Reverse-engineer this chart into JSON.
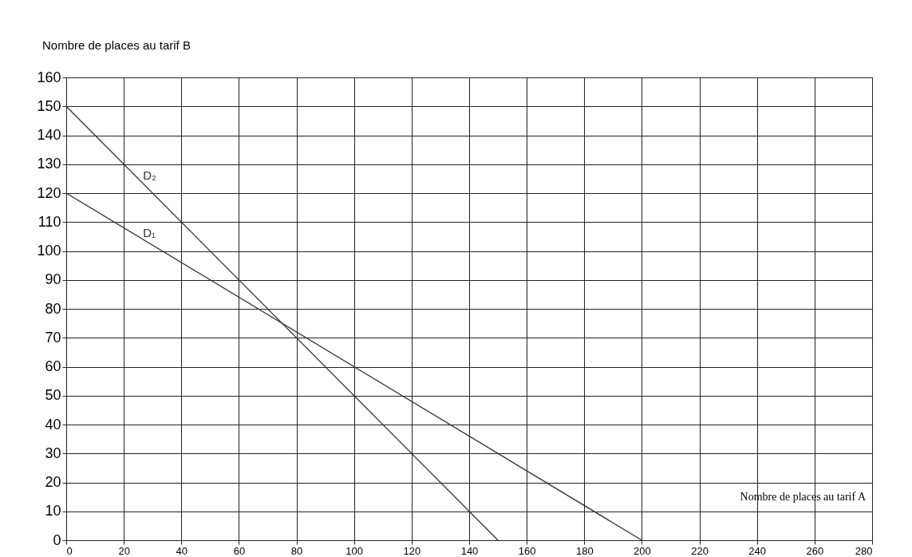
{
  "chart_data": {
    "type": "line",
    "xlabel": "Nombre de places au tarif A",
    "ylabel": "Nombre de places au tarif B",
    "series": [
      {
        "name": "D₂",
        "color": "#333333",
        "x": [
          0,
          150
        ],
        "values": [
          150,
          0
        ]
      },
      {
        "name": "D₁",
        "color": "#333333",
        "x": [
          0,
          200
        ],
        "values": [
          120,
          0
        ]
      }
    ],
    "xlim": [
      0,
      280
    ],
    "xticks": [
      0,
      20,
      40,
      60,
      80,
      100,
      120,
      140,
      160,
      180,
      200,
      220,
      240,
      260,
      280
    ],
    "ylim": [
      0,
      160
    ],
    "yticks": [
      0,
      10,
      20,
      30,
      40,
      50,
      60,
      70,
      80,
      90,
      100,
      110,
      120,
      130,
      140,
      150,
      160
    ],
    "grid": true,
    "legend": false,
    "marker": "none",
    "line_style": "solid"
  }
}
